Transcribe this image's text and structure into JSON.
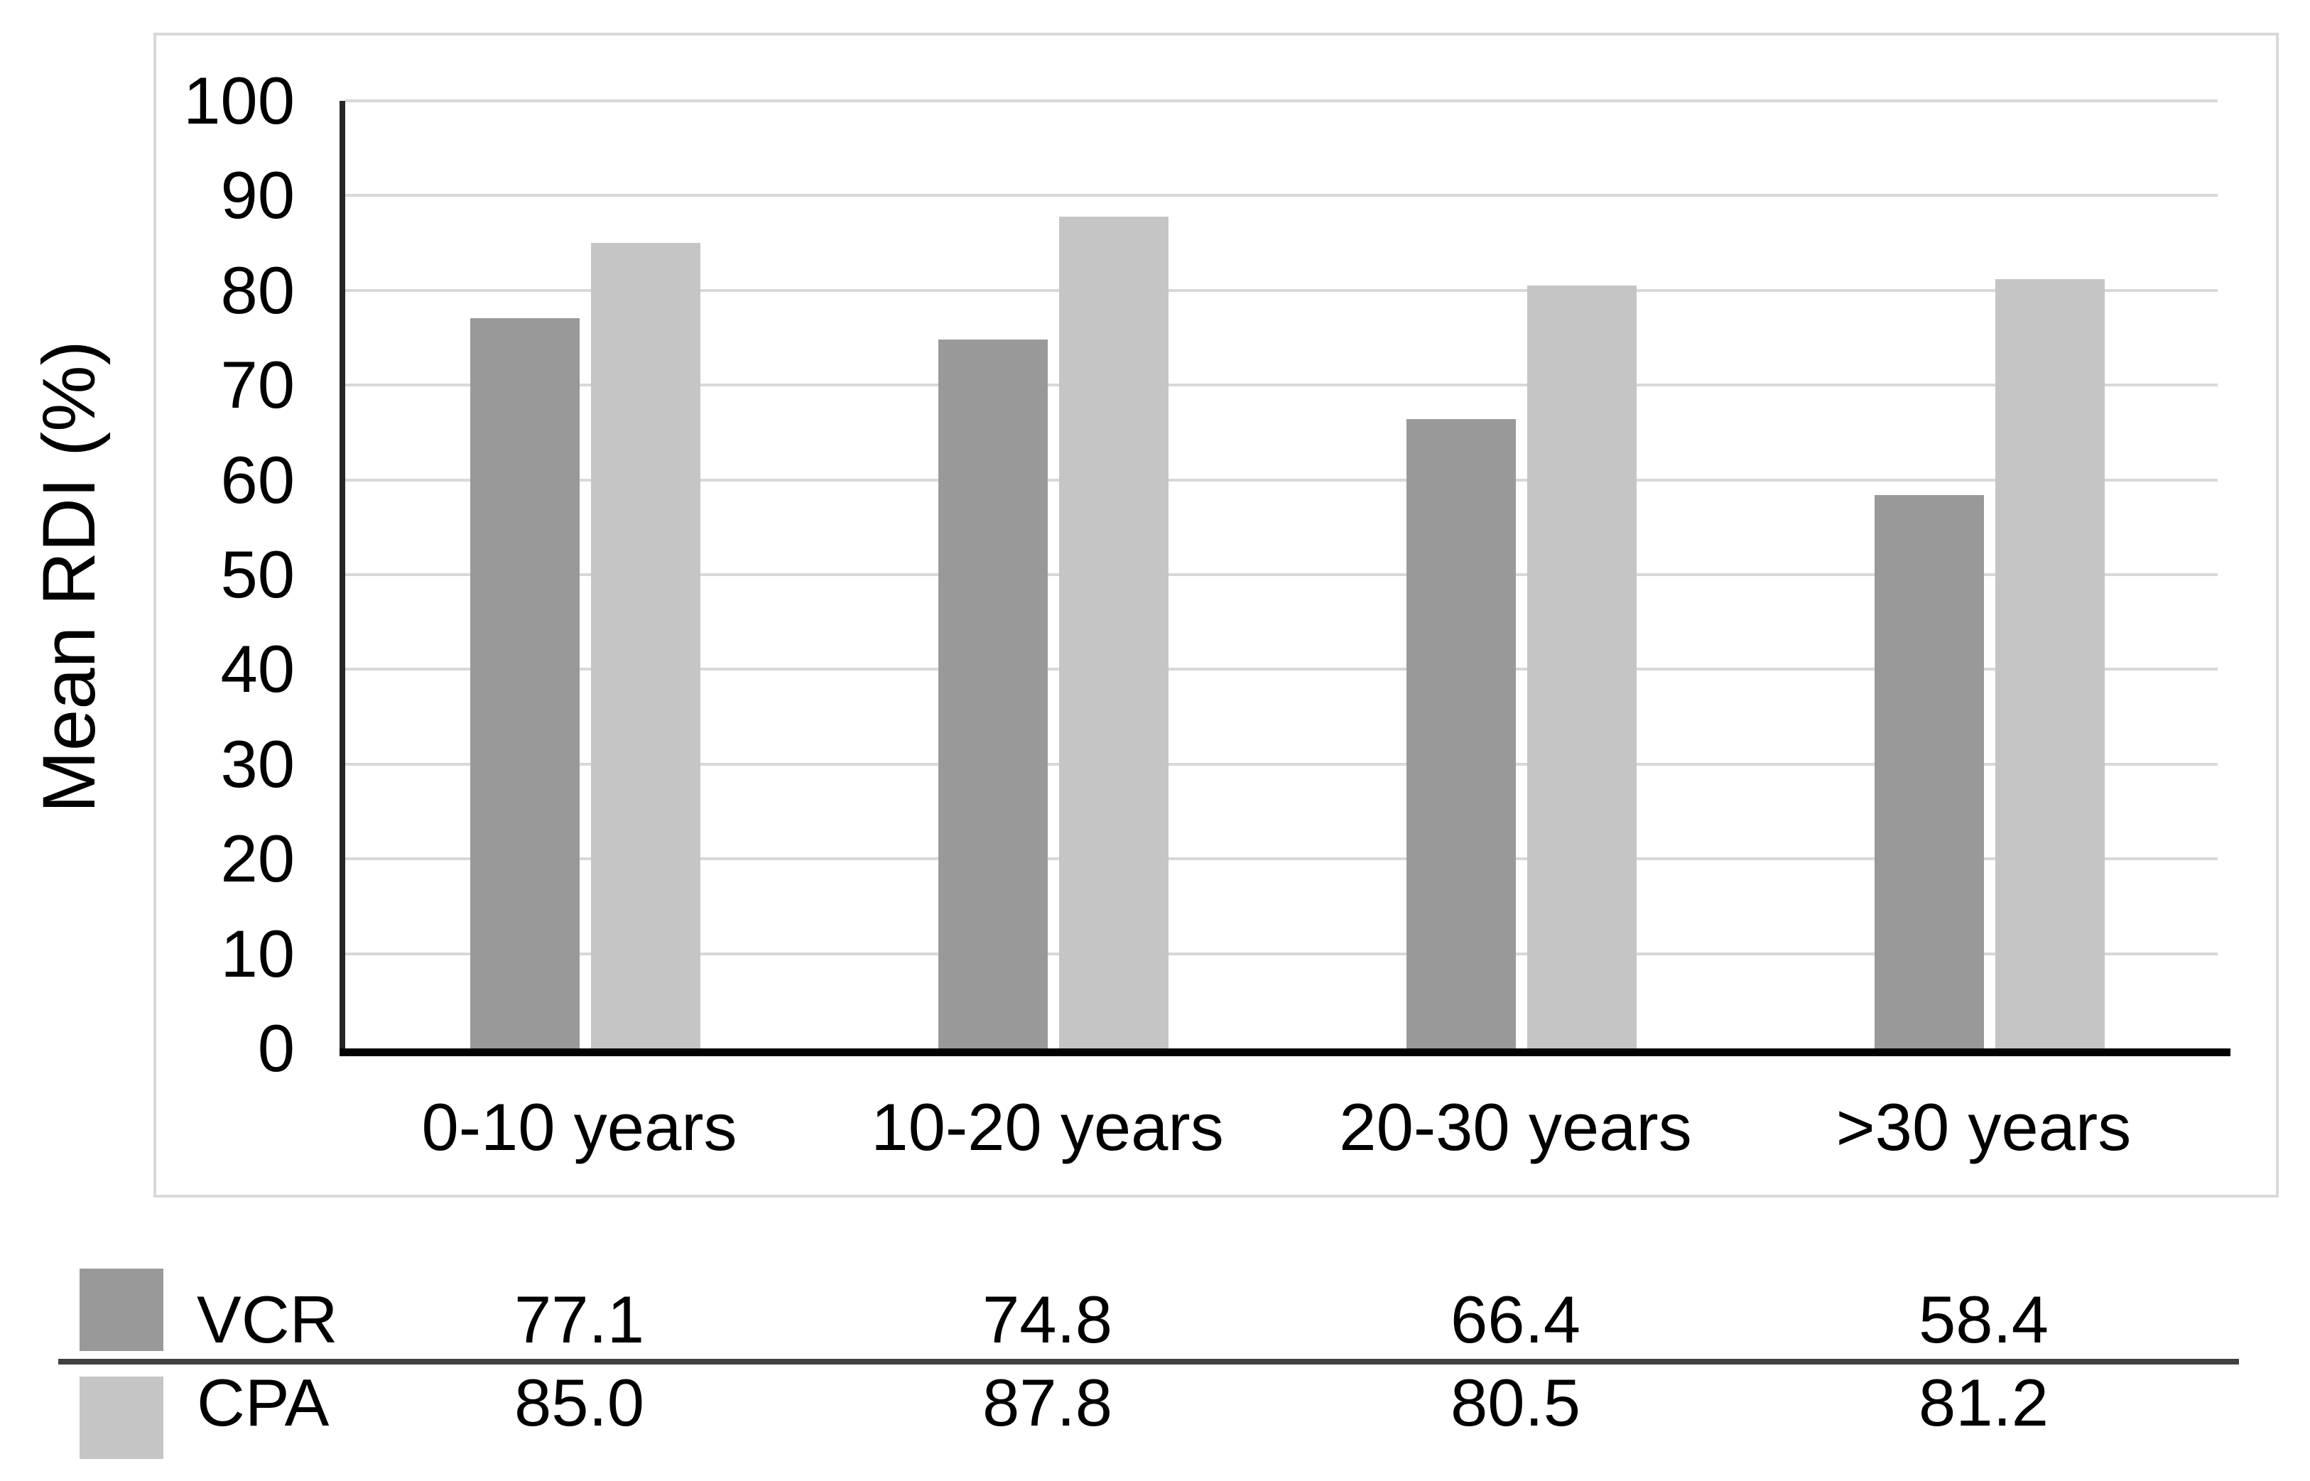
{
  "chart_data": {
    "type": "bar",
    "title": "",
    "categories": [
      "0-10 years",
      "10-20 years",
      "20-30 years",
      ">30 years"
    ],
    "series": [
      {
        "name": "VCR",
        "color": "#999999",
        "values": [
          77.1,
          74.8,
          66.4,
          58.4
        ]
      },
      {
        "name": "CPA",
        "color": "#c5c5c5",
        "values": [
          85.0,
          87.8,
          80.5,
          81.2
        ]
      }
    ],
    "xlabel": "",
    "ylabel": "Mean RDI (%)",
    "ylim": [
      0,
      100
    ],
    "ytick_step": 10,
    "ytick_labels": [
      "0",
      "10",
      "20",
      "30",
      "40",
      "50",
      "60",
      "70",
      "80",
      "90",
      "100"
    ],
    "grid": true,
    "legend_position": "table-below",
    "data_table": {
      "rows": [
        {
          "label": "VCR",
          "swatch_color": "#999999",
          "values": [
            "77.1",
            "74.8",
            "66.4",
            "58.4"
          ]
        },
        {
          "label": "CPA",
          "swatch_color": "#c5c5c5",
          "values": [
            "85.0",
            "87.8",
            "80.5",
            "81.2"
          ]
        }
      ]
    }
  },
  "colors": {
    "panel_border": "#d9d9d9",
    "gridline": "#d8d8d8",
    "y_axis_line": "#262626",
    "x_axis_line": "#000000",
    "table_separator": "#404040",
    "text": "#000000",
    "background": "#ffffff"
  }
}
